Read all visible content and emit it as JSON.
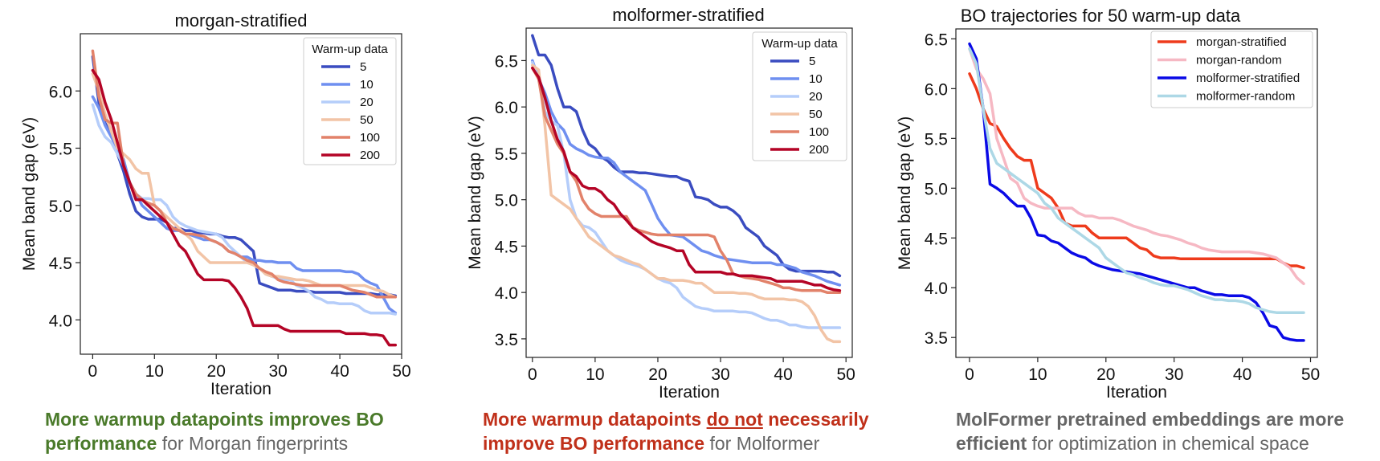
{
  "chart_data": [
    {
      "type": "line",
      "title": "morgan-stratified",
      "xlabel": "Iteration",
      "ylabel": "Mean band gap (eV)",
      "xlim": [
        -2,
        50
      ],
      "ylim": [
        3.7,
        6.5
      ],
      "xticks": [
        0,
        10,
        20,
        30,
        40,
        50
      ],
      "xtick_labels": [
        "0",
        "10",
        "20",
        "30",
        "40",
        "50"
      ],
      "yticks": [
        4.0,
        4.5,
        5.0,
        5.5,
        6.0
      ],
      "ytick_labels": [
        "4.0",
        "4.5",
        "5.0",
        "5.5",
        "6.0"
      ],
      "legend_title": "Warm-up data",
      "legend_placement": "top-right",
      "grid": false,
      "series": [
        {
          "name": "5",
          "color": "#3a4cc0",
          "values": [
            6.3,
            5.9,
            5.72,
            5.62,
            5.45,
            5.3,
            5.1,
            4.95,
            4.9,
            4.88,
            4.88,
            4.88,
            4.85,
            4.8,
            4.8,
            4.78,
            4.78,
            4.76,
            4.76,
            4.75,
            4.75,
            4.73,
            4.72,
            4.72,
            4.7,
            4.65,
            4.6,
            4.32,
            4.3,
            4.28,
            4.26,
            4.26,
            4.26,
            4.25,
            4.25,
            4.25,
            4.24,
            4.24,
            4.24,
            4.24,
            4.24,
            4.23,
            4.23,
            4.23,
            4.23,
            4.23,
            4.22,
            4.22,
            4.22,
            4.21
          ]
        },
        {
          "name": "10",
          "color": "#6f8ff0",
          "values": [
            5.95,
            5.85,
            5.7,
            5.6,
            5.5,
            5.4,
            5.2,
            5.1,
            5.0,
            4.95,
            4.9,
            4.85,
            4.8,
            4.78,
            4.78,
            4.75,
            4.74,
            4.72,
            4.7,
            4.7,
            4.68,
            4.65,
            4.6,
            4.58,
            4.55,
            4.55,
            4.52,
            4.52,
            4.51,
            4.51,
            4.5,
            4.5,
            4.5,
            4.45,
            4.43,
            4.43,
            4.43,
            4.43,
            4.43,
            4.43,
            4.43,
            4.42,
            4.42,
            4.4,
            4.35,
            4.32,
            4.3,
            4.2,
            4.1,
            4.06
          ]
        },
        {
          "name": "20",
          "color": "#b5cdfa",
          "values": [
            5.88,
            5.7,
            5.6,
            5.55,
            5.45,
            5.35,
            5.2,
            5.1,
            5.06,
            5.06,
            5.05,
            5.05,
            5.0,
            4.9,
            4.85,
            4.82,
            4.8,
            4.78,
            4.77,
            4.76,
            4.75,
            4.72,
            4.65,
            4.6,
            4.55,
            4.5,
            4.48,
            4.45,
            4.4,
            4.38,
            4.36,
            4.35,
            4.35,
            4.3,
            4.28,
            4.25,
            4.2,
            4.18,
            4.15,
            4.15,
            4.14,
            4.14,
            4.14,
            4.12,
            4.08,
            4.06,
            4.06,
            4.06,
            4.06,
            4.05
          ]
        },
        {
          "name": "50",
          "color": "#f2c4a6",
          "values": [
            6.15,
            6.0,
            5.8,
            5.65,
            5.5,
            5.45,
            5.4,
            5.32,
            5.28,
            5.28,
            5.0,
            4.95,
            4.9,
            4.85,
            4.8,
            4.75,
            4.7,
            4.6,
            4.55,
            4.5,
            4.5,
            4.5,
            4.5,
            4.5,
            4.5,
            4.5,
            4.48,
            4.45,
            4.4,
            4.38,
            4.38,
            4.37,
            4.36,
            4.35,
            4.35,
            4.34,
            4.32,
            4.3,
            4.3,
            4.3,
            4.3,
            4.3,
            4.3,
            4.3,
            4.3,
            4.28,
            4.26,
            4.25,
            4.22,
            4.2
          ]
        },
        {
          "name": "100",
          "color": "#e2826a",
          "values": [
            6.35,
            5.95,
            5.75,
            5.72,
            5.72,
            5.35,
            5.2,
            5.1,
            5.05,
            5.02,
            5.0,
            4.95,
            4.85,
            4.8,
            4.78,
            4.75,
            4.75,
            4.74,
            4.73,
            4.7,
            4.68,
            4.65,
            4.6,
            4.58,
            4.55,
            4.52,
            4.5,
            4.45,
            4.42,
            4.4,
            4.35,
            4.33,
            4.32,
            4.31,
            4.3,
            4.3,
            4.3,
            4.3,
            4.3,
            4.3,
            4.3,
            4.28,
            4.26,
            4.25,
            4.24,
            4.22,
            4.2,
            4.2,
            4.2,
            4.2
          ]
        },
        {
          "name": "200",
          "color": "#b40426",
          "values": [
            6.18,
            6.1,
            5.9,
            5.75,
            5.55,
            5.35,
            5.2,
            5.05,
            5.05,
            5.0,
            4.95,
            4.9,
            4.85,
            4.75,
            4.65,
            4.6,
            4.5,
            4.4,
            4.35,
            4.35,
            4.35,
            4.35,
            4.34,
            4.28,
            4.2,
            4.1,
            3.95,
            3.95,
            3.95,
            3.95,
            3.95,
            3.92,
            3.9,
            3.9,
            3.9,
            3.9,
            3.9,
            3.9,
            3.9,
            3.9,
            3.9,
            3.88,
            3.88,
            3.88,
            3.88,
            3.87,
            3.87,
            3.86,
            3.78,
            3.78
          ]
        }
      ]
    },
    {
      "type": "line",
      "title": "molformer-stratified",
      "xlabel": "Iteration",
      "ylabel": "Mean band gap (eV)",
      "xlim": [
        -1,
        51
      ],
      "ylim": [
        3.3,
        6.85
      ],
      "xticks": [
        0,
        10,
        20,
        30,
        40,
        50
      ],
      "xtick_labels": [
        "0",
        "10",
        "20",
        "30",
        "40",
        "50"
      ],
      "yticks": [
        3.5,
        4.0,
        4.5,
        5.0,
        5.5,
        6.0,
        6.5
      ],
      "ytick_labels": [
        "3.5",
        "4.0",
        "4.5",
        "5.0",
        "5.5",
        "6.0",
        "6.5"
      ],
      "legend_title": "Warm-up data",
      "legend_placement": "top-right",
      "grid": false,
      "series": [
        {
          "name": "5",
          "color": "#3a4cc0",
          "values": [
            6.77,
            6.56,
            6.56,
            6.45,
            6.2,
            6.0,
            6.0,
            5.95,
            5.75,
            5.6,
            5.55,
            5.46,
            5.42,
            5.35,
            5.3,
            5.3,
            5.3,
            5.29,
            5.29,
            5.28,
            5.27,
            5.26,
            5.25,
            5.25,
            5.22,
            5.2,
            5.03,
            5.02,
            5.0,
            4.95,
            4.92,
            4.92,
            4.88,
            4.82,
            4.7,
            4.65,
            4.6,
            4.5,
            4.45,
            4.4,
            4.3,
            4.25,
            4.23,
            4.23,
            4.23,
            4.23,
            4.23,
            4.22,
            4.22,
            4.18
          ]
        },
        {
          "name": "10",
          "color": "#6f8ff0",
          "values": [
            6.5,
            6.3,
            6.15,
            5.95,
            5.82,
            5.75,
            5.6,
            5.55,
            5.52,
            5.48,
            5.46,
            5.45,
            5.45,
            5.4,
            5.3,
            5.25,
            5.2,
            5.15,
            5.1,
            4.95,
            4.8,
            4.7,
            4.62,
            4.61,
            4.6,
            4.55,
            4.5,
            4.45,
            4.43,
            4.4,
            4.38,
            4.36,
            4.35,
            4.34,
            4.33,
            4.32,
            4.32,
            4.32,
            4.32,
            4.3,
            4.3,
            4.28,
            4.26,
            4.22,
            4.2,
            4.18,
            4.15,
            4.12,
            4.1,
            4.08
          ]
        },
        {
          "name": "20",
          "color": "#b5cdfa",
          "values": [
            6.48,
            6.3,
            5.95,
            5.85,
            5.8,
            5.5,
            5.0,
            4.8,
            4.72,
            4.7,
            4.65,
            4.55,
            4.45,
            4.4,
            4.35,
            4.32,
            4.3,
            4.28,
            4.25,
            4.2,
            4.15,
            4.12,
            4.1,
            4.05,
            3.95,
            3.9,
            3.85,
            3.83,
            3.82,
            3.8,
            3.8,
            3.8,
            3.8,
            3.79,
            3.79,
            3.78,
            3.75,
            3.72,
            3.7,
            3.7,
            3.68,
            3.65,
            3.65,
            3.63,
            3.62,
            3.62,
            3.62,
            3.62,
            3.62,
            3.62
          ]
        },
        {
          "name": "50",
          "color": "#f2c4a6",
          "values": [
            6.45,
            6.4,
            5.8,
            5.05,
            5.0,
            4.95,
            4.9,
            4.8,
            4.7,
            4.6,
            4.55,
            4.5,
            4.45,
            4.4,
            4.38,
            4.35,
            4.32,
            4.3,
            4.25,
            4.2,
            4.15,
            4.15,
            4.13,
            4.13,
            4.13,
            4.12,
            4.1,
            4.1,
            4.05,
            4.0,
            4.0,
            4.0,
            4.0,
            3.99,
            3.99,
            3.98,
            3.95,
            3.93,
            3.93,
            3.93,
            3.93,
            3.92,
            3.92,
            3.9,
            3.85,
            3.75,
            3.6,
            3.5,
            3.47,
            3.47
          ]
        },
        {
          "name": "100",
          "color": "#e2826a",
          "values": [
            6.42,
            6.3,
            5.9,
            5.75,
            5.6,
            5.5,
            5.3,
            5.2,
            5.0,
            4.9,
            4.85,
            4.82,
            4.82,
            4.82,
            4.82,
            4.82,
            4.7,
            4.67,
            4.65,
            4.63,
            4.62,
            4.62,
            4.62,
            4.62,
            4.62,
            4.62,
            4.62,
            4.62,
            4.62,
            4.6,
            4.45,
            4.35,
            4.2,
            4.18,
            4.16,
            4.15,
            4.14,
            4.12,
            4.1,
            4.08,
            4.05,
            4.05,
            4.03,
            4.02,
            4.02,
            4.02,
            4.02,
            4.0,
            4.0,
            4.0
          ]
        },
        {
          "name": "200",
          "color": "#b40426",
          "values": [
            6.42,
            6.32,
            6.1,
            5.85,
            5.65,
            5.52,
            5.3,
            5.25,
            5.15,
            5.12,
            5.12,
            5.08,
            5.0,
            4.95,
            4.85,
            4.78,
            4.7,
            4.65,
            4.6,
            4.55,
            4.52,
            4.5,
            4.48,
            4.45,
            4.45,
            4.3,
            4.22,
            4.22,
            4.22,
            4.22,
            4.22,
            4.2,
            4.2,
            4.18,
            4.18,
            4.18,
            4.17,
            4.16,
            4.15,
            4.12,
            4.12,
            4.12,
            4.12,
            4.12,
            4.1,
            4.08,
            4.08,
            4.05,
            4.03,
            4.02
          ]
        }
      ]
    },
    {
      "type": "line",
      "title": "BO trajectories for 50 warm-up data",
      "xlabel": "Iteration",
      "ylabel": "Mean band gap (eV)",
      "xlim": [
        -2,
        51
      ],
      "ylim": [
        3.3,
        6.6
      ],
      "xticks": [
        0,
        10,
        20,
        30,
        40,
        50
      ],
      "xtick_labels": [
        "0",
        "10",
        "20",
        "30",
        "40",
        "50"
      ],
      "yticks": [
        3.5,
        4.0,
        4.5,
        5.0,
        5.5,
        6.0,
        6.5
      ],
      "ytick_labels": [
        "3.5",
        "4.0",
        "4.5",
        "5.0",
        "5.5",
        "6.0",
        "6.5"
      ],
      "legend_placement": "top-right",
      "grid": false,
      "series": [
        {
          "name": "morgan-stratified",
          "color": "#ee3b1c",
          "values": [
            6.15,
            6.0,
            5.8,
            5.65,
            5.62,
            5.5,
            5.4,
            5.32,
            5.28,
            5.28,
            5.0,
            4.95,
            4.9,
            4.8,
            4.65,
            4.62,
            4.62,
            4.62,
            4.55,
            4.5,
            4.5,
            4.5,
            4.5,
            4.5,
            4.45,
            4.4,
            4.38,
            4.32,
            4.3,
            4.3,
            4.3,
            4.29,
            4.29,
            4.29,
            4.29,
            4.29,
            4.29,
            4.29,
            4.29,
            4.29,
            4.29,
            4.29,
            4.29,
            4.29,
            4.29,
            4.29,
            4.25,
            4.22,
            4.22,
            4.2
          ]
        },
        {
          "name": "morgan-random",
          "color": "#f6b8c3",
          "values": [
            6.4,
            6.2,
            6.1,
            5.95,
            5.5,
            5.3,
            5.1,
            5.05,
            4.9,
            4.85,
            4.82,
            4.8,
            4.8,
            4.8,
            4.8,
            4.8,
            4.75,
            4.72,
            4.72,
            4.7,
            4.7,
            4.7,
            4.68,
            4.65,
            4.62,
            4.6,
            4.58,
            4.55,
            4.53,
            4.52,
            4.5,
            4.48,
            4.45,
            4.43,
            4.4,
            4.38,
            4.37,
            4.36,
            4.36,
            4.36,
            4.36,
            4.36,
            4.35,
            4.34,
            4.32,
            4.3,
            4.25,
            4.2,
            4.1,
            4.04
          ]
        },
        {
          "name": "molformer-stratified",
          "color": "#0a0ae6",
          "values": [
            6.45,
            6.3,
            5.8,
            5.04,
            5.0,
            4.95,
            4.88,
            4.82,
            4.82,
            4.7,
            4.53,
            4.52,
            4.47,
            4.45,
            4.4,
            4.35,
            4.32,
            4.3,
            4.25,
            4.22,
            4.2,
            4.18,
            4.17,
            4.16,
            4.15,
            4.14,
            4.12,
            4.1,
            4.08,
            4.06,
            4.04,
            4.02,
            4.0,
            4.0,
            3.97,
            3.95,
            3.93,
            3.93,
            3.92,
            3.92,
            3.92,
            3.9,
            3.85,
            3.75,
            3.62,
            3.6,
            3.5,
            3.48,
            3.47,
            3.47
          ]
        },
        {
          "name": "molformer-random",
          "color": "#add8e6",
          "values": [
            6.4,
            6.25,
            5.8,
            5.4,
            5.25,
            5.2,
            5.15,
            5.1,
            5.05,
            5.0,
            4.95,
            4.85,
            4.8,
            4.7,
            4.65,
            4.6,
            4.55,
            4.5,
            4.45,
            4.4,
            4.3,
            4.25,
            4.2,
            4.15,
            4.13,
            4.1,
            4.08,
            4.05,
            4.03,
            4.02,
            4.02,
            4.0,
            3.98,
            3.95,
            3.92,
            3.9,
            3.88,
            3.88,
            3.87,
            3.87,
            3.86,
            3.84,
            3.8,
            3.78,
            3.76,
            3.75,
            3.75,
            3.75,
            3.75,
            3.75
          ]
        }
      ]
    }
  ],
  "captions": [
    {
      "bold": "More warmup datapoints improves BO",
      "bold2": "performance",
      "plain": " for Morgan fingerprints"
    },
    {
      "bold": "More warmup datapoints ",
      "underline": "do not",
      "bold_after": " necessarily",
      "bold2": "improve BO performance",
      "plain": " for Molformer"
    },
    {
      "bold": "MolFormer pretrained embeddings are more",
      "bold2": "efficient",
      "plain": " for optimization in chemical space"
    }
  ],
  "colors": {
    "caption_green": "#4a7a2a",
    "caption_red": "#c0301a",
    "caption_gray": "#666666"
  }
}
